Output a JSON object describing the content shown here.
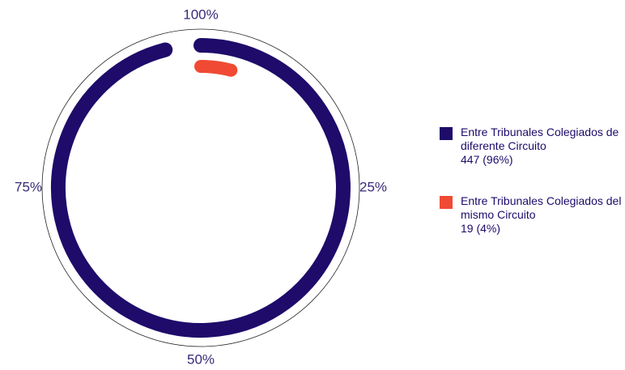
{
  "chart_data": {
    "type": "radialBar",
    "categories": [
      "Entre Tribunales Colegiados de diferente Circuito",
      "Entre Tribunales Colegiados del mismo Circuito"
    ],
    "values": [
      96,
      4
    ],
    "value_labels": [
      "447 (96%)",
      "19 (4%)"
    ],
    "colors": [
      "#1e0b6a",
      "#f04a34"
    ],
    "xlim": [
      0,
      100
    ],
    "xticks": [
      {
        "value": 25,
        "label": "25%"
      },
      {
        "value": 50,
        "label": "50%"
      },
      {
        "value": 75,
        "label": "75%"
      },
      {
        "value": 100,
        "label": "100%"
      }
    ],
    "legend": "right"
  }
}
